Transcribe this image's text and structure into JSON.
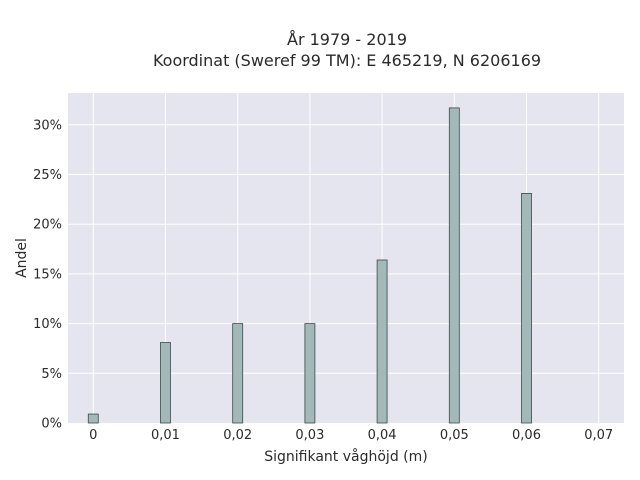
{
  "chart_data": {
    "type": "bar",
    "title_line1": "År 1979 - 2019",
    "title_line2": "Koordinat (Sweref 99 TM): E 465219, N 6206169",
    "xlabel": "Signifikant våghöjd (m)",
    "ylabel": "Andel",
    "x": [
      0,
      0.01,
      0.02,
      0.03,
      0.04,
      0.05,
      0.06
    ],
    "values": [
      0.9,
      8.1,
      10.0,
      10.0,
      16.4,
      31.7,
      23.1
    ],
    "xlim": [
      -0.0035,
      0.0735
    ],
    "ylim": [
      0,
      33.2
    ],
    "x_ticks": [
      {
        "value": 0,
        "label": "0"
      },
      {
        "value": 0.01,
        "label": "0,01"
      },
      {
        "value": 0.02,
        "label": "0,02"
      },
      {
        "value": 0.03,
        "label": "0,03"
      },
      {
        "value": 0.04,
        "label": "0,04"
      },
      {
        "value": 0.05,
        "label": "0,05"
      },
      {
        "value": 0.06,
        "label": "0,06"
      },
      {
        "value": 0.07,
        "label": "0,07"
      }
    ],
    "y_ticks": [
      {
        "value": 0,
        "label": "0%"
      },
      {
        "value": 5,
        "label": "5%"
      },
      {
        "value": 10,
        "label": "10%"
      },
      {
        "value": 15,
        "label": "15%"
      },
      {
        "value": 20,
        "label": "20%"
      },
      {
        "value": 25,
        "label": "25%"
      },
      {
        "value": 30,
        "label": "30%"
      }
    ],
    "grid": true,
    "colors": {
      "plot_background": "#e5e5ef",
      "grid": "#ffffff",
      "bar_fill": "#a3b8b8",
      "bar_stroke": "#3a4a4a"
    }
  }
}
